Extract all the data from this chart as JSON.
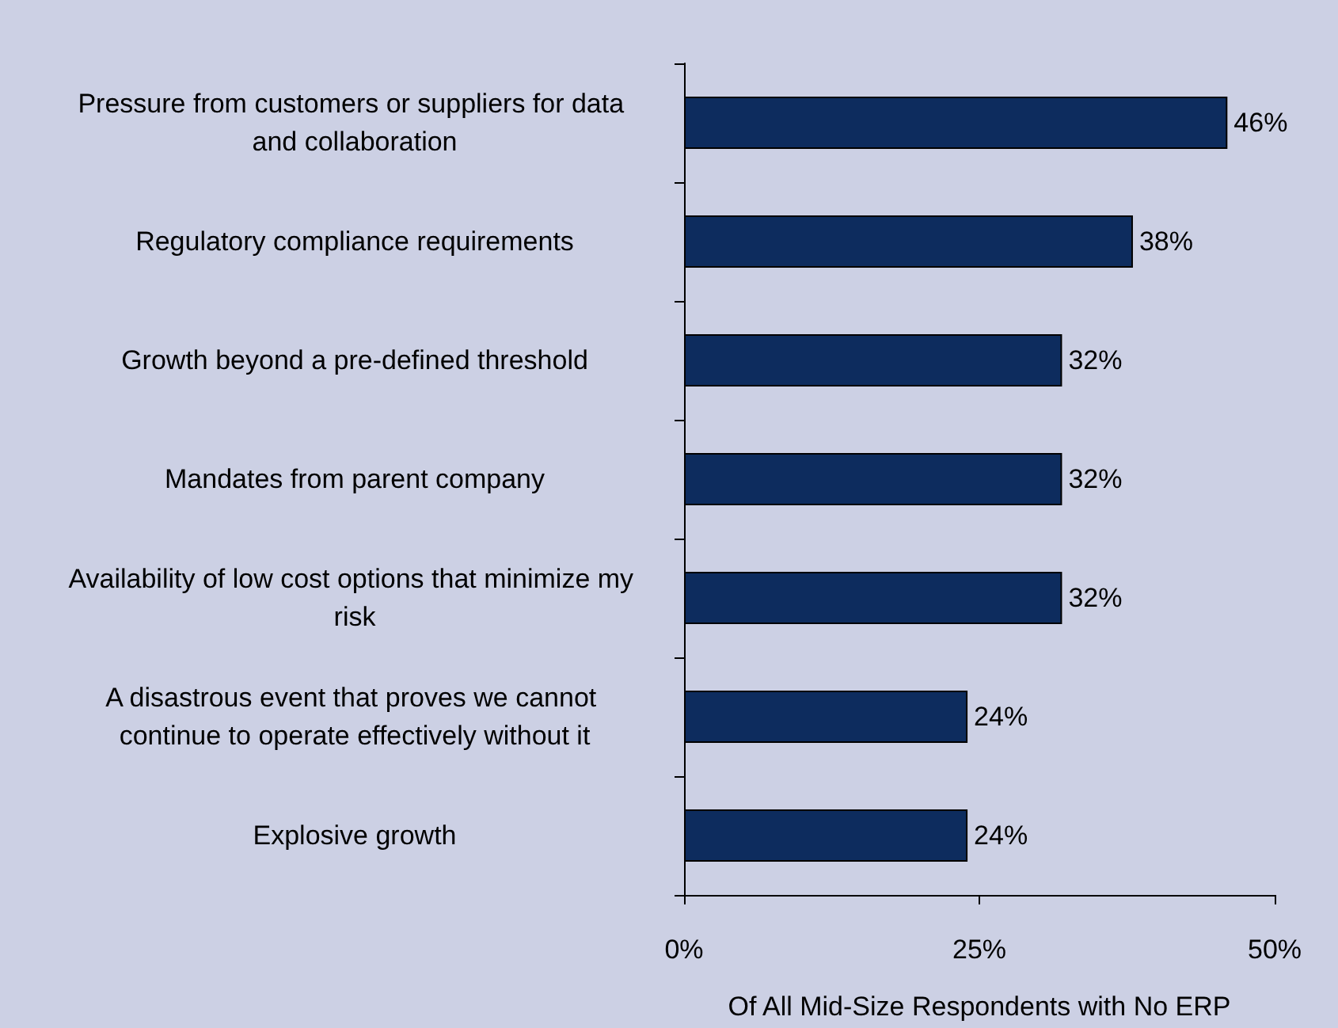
{
  "chart_data": {
    "type": "bar",
    "orientation": "horizontal",
    "xlabel": "Of All Mid-Size Respondents with No ERP",
    "categories": [
      "Pressure from customers or suppliers for data and collaboration",
      "Regulatory compliance requirements",
      "Growth beyond a pre-defined threshold",
      "Mandates from parent company",
      "Availability of low cost options that minimize my risk",
      "A disastrous event that proves we cannot continue to operate effectively without it",
      "Explosive growth"
    ],
    "values": [
      46,
      38,
      32,
      32,
      32,
      24,
      24
    ],
    "value_labels": [
      "46%",
      "38%",
      "32%",
      "32%",
      "32%",
      "24%",
      "24%"
    ],
    "color": "#0d2c5e",
    "xlim": [
      0,
      50
    ],
    "xticks": [
      {
        "value": 0,
        "label": "0%"
      },
      {
        "value": 25,
        "label": "25%"
      },
      {
        "value": 50,
        "label": "50%"
      }
    ]
  }
}
